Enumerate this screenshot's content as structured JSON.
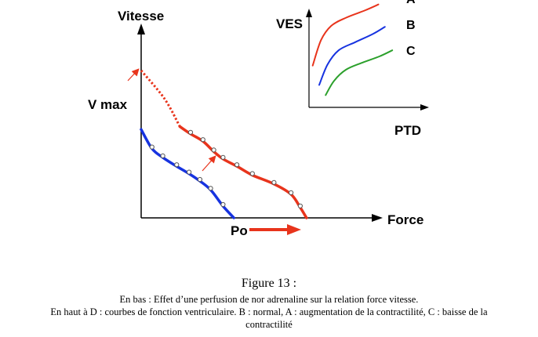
{
  "figure": {
    "main": {
      "y_label": "Vitesse",
      "x_label": "Force",
      "vmax_label": "V max",
      "po_label": "Po"
    },
    "inset": {
      "y_label": "VES",
      "x_label": "PTD",
      "curve_labels": [
        "A",
        "B",
        "C"
      ]
    }
  },
  "colors": {
    "red": "#e8341c",
    "blue": "#1733e0",
    "green": "#2ca02c",
    "axis": "#000000",
    "arrow": "#e8341c"
  },
  "chart_data": [
    {
      "type": "line",
      "title": "",
      "xlabel": "Force",
      "ylabel": "Vitesse",
      "annotations": [
        "V max",
        "Po"
      ],
      "series": [
        {
          "color": "#e8341c",
          "x": [
            0.0,
            0.15,
            0.25,
            0.32,
            0.4,
            0.47,
            0.53,
            0.62,
            0.72,
            0.86,
            0.97,
            1.03,
            1.07
          ],
          "y": [
            1.0,
            0.81,
            0.62,
            0.57,
            0.52,
            0.45,
            0.4,
            0.35,
            0.29,
            0.23,
            0.16,
            0.07,
            0.0
          ]
        },
        {
          "color": "#1733e0",
          "x": [
            0.0,
            0.07,
            0.14,
            0.23,
            0.31,
            0.38,
            0.45,
            0.53,
            0.6
          ],
          "y": [
            0.6,
            0.47,
            0.41,
            0.35,
            0.3,
            0.25,
            0.19,
            0.08,
            0.0
          ]
        }
      ]
    },
    {
      "type": "line",
      "title": "",
      "xlabel": "PTD",
      "ylabel": "VES",
      "series": [
        {
          "name": "A",
          "color": "#e8341c",
          "x": [
            0.04,
            0.13,
            0.24,
            0.4,
            0.6,
            0.75
          ],
          "y": [
            0.41,
            0.66,
            0.8,
            0.88,
            0.95,
            1.01
          ]
        },
        {
          "name": "B",
          "color": "#1733e0",
          "x": [
            0.11,
            0.2,
            0.32,
            0.5,
            0.69,
            0.82
          ],
          "y": [
            0.22,
            0.42,
            0.56,
            0.64,
            0.72,
            0.79
          ]
        },
        {
          "name": "C",
          "color": "#2ca02c",
          "x": [
            0.18,
            0.27,
            0.4,
            0.58,
            0.76,
            0.9
          ],
          "y": [
            0.12,
            0.26,
            0.37,
            0.44,
            0.5,
            0.56
          ]
        }
      ]
    }
  ],
  "caption": {
    "title": "Figure 13 :",
    "line1": "En bas : Effet d’une perfusion de nor adrenaline sur la relation force vitesse.",
    "line2": "En haut à D : courbes de fonction ventriculaire. B : normal, A : augmentation de la contractilité, C : baisse de la",
    "line3": "contractilité"
  }
}
